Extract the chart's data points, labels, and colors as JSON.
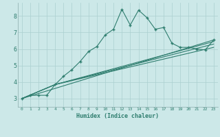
{
  "xlabel": "Humidex (Indice chaleur)",
  "background_color": "#cce8e8",
  "grid_color": "#aacfcf",
  "line_color": "#2e7d6e",
  "xlim": [
    -0.5,
    23.5
  ],
  "ylim": [
    2.5,
    8.8
  ],
  "xticks": [
    0,
    1,
    2,
    3,
    4,
    5,
    6,
    7,
    8,
    9,
    10,
    11,
    12,
    13,
    14,
    15,
    16,
    17,
    18,
    19,
    20,
    21,
    22,
    23
  ],
  "yticks": [
    3,
    4,
    5,
    6,
    7,
    8
  ],
  "main_x": [
    0,
    1,
    2,
    3,
    4,
    5,
    6,
    7,
    8,
    9,
    10,
    11,
    12,
    13,
    14,
    15,
    16,
    17,
    18,
    19,
    20,
    21,
    22,
    23
  ],
  "main_y": [
    3.0,
    3.2,
    3.2,
    3.2,
    3.85,
    4.35,
    4.75,
    5.25,
    5.85,
    6.15,
    6.85,
    7.2,
    8.4,
    7.45,
    8.35,
    7.9,
    7.2,
    7.3,
    6.35,
    6.1,
    6.1,
    6.0,
    5.95,
    6.55
  ],
  "line1_x": [
    0,
    23
  ],
  "line1_y": [
    3.0,
    6.55
  ],
  "line2_x": [
    0,
    4,
    23
  ],
  "line2_y": [
    3.0,
    3.85,
    6.1
  ],
  "line3_x": [
    0,
    4,
    23
  ],
  "line3_y": [
    3.0,
    3.85,
    6.3
  ],
  "line4_x": [
    0,
    4,
    23
  ],
  "line4_y": [
    3.0,
    3.85,
    6.45
  ]
}
